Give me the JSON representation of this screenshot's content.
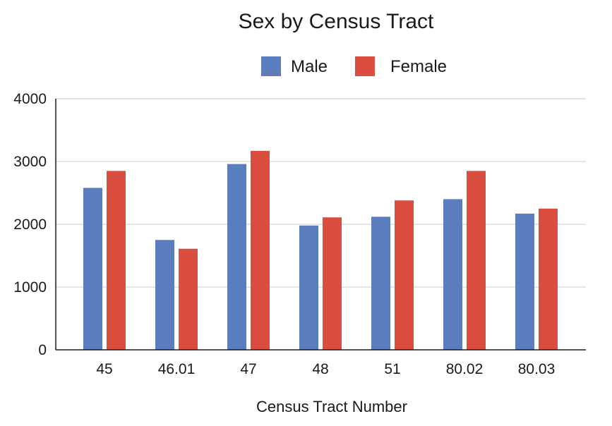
{
  "chart_data": {
    "type": "bar",
    "title": "Sex by Census Tract",
    "xlabel": "Census Tract Number",
    "ylabel": "",
    "categories": [
      "45",
      "46.01",
      "47",
      "48",
      "51",
      "80.02",
      "80.03"
    ],
    "series": [
      {
        "name": "Male",
        "color": "#5b7dbd",
        "values": [
          2580,
          1750,
          2960,
          1980,
          2120,
          2400,
          2170
        ]
      },
      {
        "name": "Female",
        "color": "#d94e3f",
        "values": [
          2850,
          1610,
          3170,
          2110,
          2380,
          2850,
          2250
        ]
      }
    ],
    "ylim": [
      0,
      4000
    ],
    "yticks": [
      0,
      1000,
      2000,
      3000,
      4000
    ],
    "grid": true,
    "legend_position": "top"
  }
}
